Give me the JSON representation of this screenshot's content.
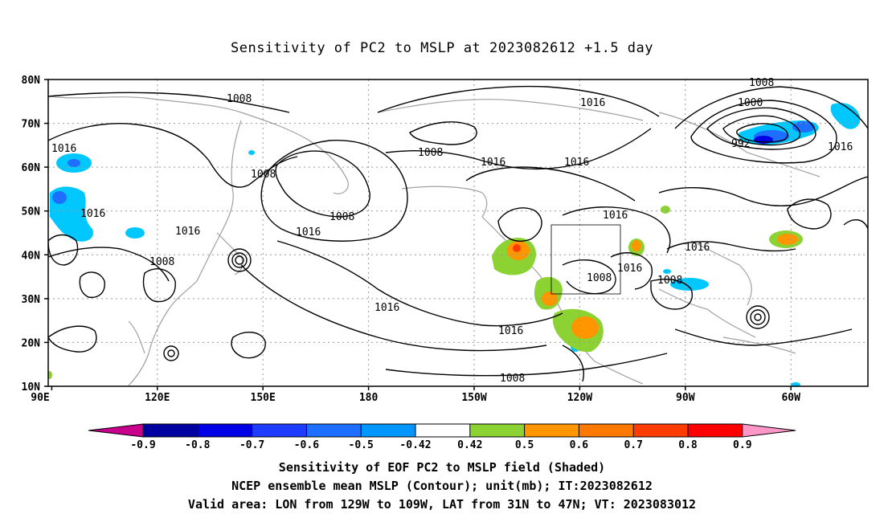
{
  "title": "Sensitivity of PC2 to MSLP at 2023082612 +1.5 day",
  "map": {
    "lat_labels": [
      "80N",
      "70N",
      "60N",
      "50N",
      "40N",
      "30N",
      "20N",
      "10N"
    ],
    "lon_labels": [
      "90E",
      "120E",
      "150E",
      "180",
      "150W",
      "120W",
      "90W",
      "60W"
    ],
    "contour_labels": [
      "1008",
      "1016",
      "1000",
      "992",
      "1016",
      "1008",
      "1016",
      "1008",
      "1016",
      "1016",
      "1008",
      "1016",
      "1008",
      "1016",
      "1008",
      "1016",
      "1016",
      "1016",
      "1008",
      "1016",
      "1008",
      "1016",
      "1016",
      "1008"
    ],
    "valid_area_box": {
      "lon_min": -129,
      "lon_max": -109,
      "lat_min": 31,
      "lat_max": 47
    },
    "colors": {
      "land_outline": "#a0a0a0",
      "contour": "#000000",
      "grid": "#999999"
    }
  },
  "colorbar": {
    "labels": [
      "-0.9",
      "-0.8",
      "-0.7",
      "-0.6",
      "-0.5",
      "-0.42",
      "0.42",
      "0.5",
      "0.6",
      "0.7",
      "0.8",
      "0.9"
    ],
    "colors": [
      "#c8008c",
      "#0000a0",
      "#0000e6",
      "#1e3cff",
      "#1e6eff",
      "#0096ff",
      "#00c8ff",
      "#ffffff",
      "#8cd232",
      "#ff9600",
      "#ff7800",
      "#ff3c00",
      "#ff0000",
      "#ff96c8"
    ]
  },
  "caption": {
    "line1": "Sensitivity of EOF PC2 to MSLP field (Shaded)",
    "line2": "NCEP ensemble mean MSLP (Contour); unit(mb); IT:2023082612",
    "line3": "Valid area: LON from 129W to 109W, LAT from 31N to 47N; VT: 2023083012"
  }
}
